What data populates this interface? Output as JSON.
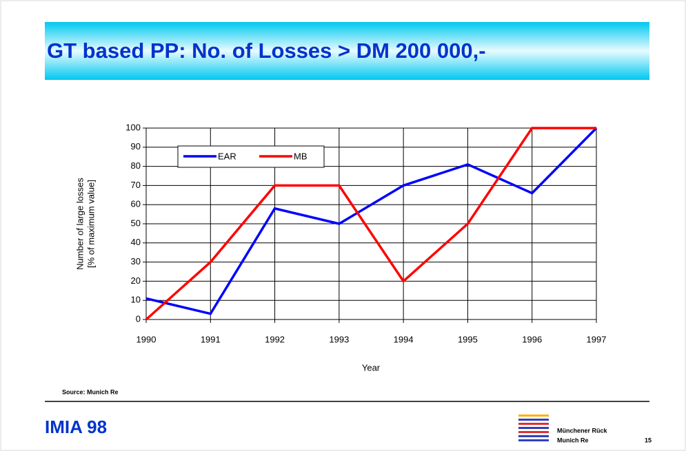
{
  "chart_data": {
    "type": "line",
    "title": "GT based PP: No. of Losses > DM 200 000,-",
    "xlabel": "Year",
    "ylabel": [
      "Number of large losses",
      "[% of maximum value]"
    ],
    "categories": [
      "1990",
      "1991",
      "1992",
      "1993",
      "1994",
      "1995",
      "1996",
      "1997"
    ],
    "series": [
      {
        "name": "EAR",
        "color": "#0000ff",
        "values": [
          11,
          3,
          58,
          50,
          70,
          81,
          66,
          100
        ]
      },
      {
        "name": "MB",
        "color": "#ff0000",
        "values": [
          0,
          30,
          70,
          70,
          20,
          50,
          100,
          100
        ]
      }
    ],
    "ylim": [
      0,
      100
    ],
    "yticks": [
      0,
      10,
      20,
      30,
      40,
      50,
      60,
      70,
      80,
      90,
      100
    ],
    "grid": true,
    "legend": "upper left"
  },
  "slide": {
    "source": "Source: Munich Re",
    "footer": "IMIA 98",
    "logo_lines": [
      "Münchener Rück",
      "Munich Re"
    ],
    "page": "15"
  }
}
